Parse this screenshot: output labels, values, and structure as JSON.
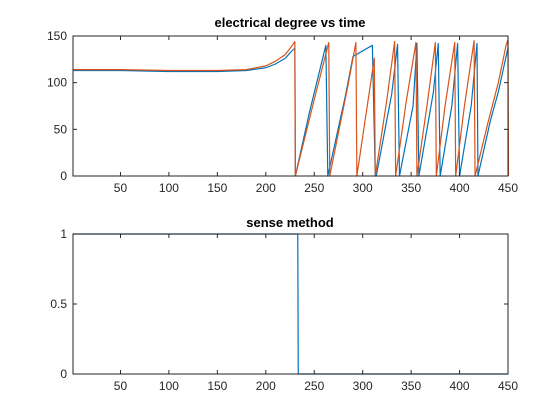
{
  "chart_data": [
    {
      "type": "line",
      "title": "electrical degree vs time",
      "xlabel": "",
      "ylabel": "",
      "xlim": [
        1,
        450
      ],
      "ylim": [
        0,
        150
      ],
      "xticks": [
        50,
        100,
        150,
        200,
        250,
        300,
        350,
        400,
        450
      ],
      "yticks": [
        0,
        50,
        100,
        150
      ],
      "grid": false,
      "series": [
        {
          "color": "#0072BD",
          "x": [
            1,
            50,
            100,
            150,
            180,
            200,
            210,
            220,
            226,
            230,
            230.5,
            245,
            262,
            264,
            282,
            290,
            310,
            313,
            314,
            330,
            336,
            338,
            352,
            356,
            358,
            373,
            378,
            380,
            392,
            398,
            400,
            412,
            418,
            419,
            432,
            440,
            448,
            450
          ],
          "y": [
            113,
            113,
            112,
            112,
            113,
            116,
            120,
            126,
            133,
            137,
            0,
            68,
            140,
            0,
            85,
            128,
            140,
            0,
            0,
            88,
            141,
            0,
            75,
            142,
            0,
            90,
            142,
            0,
            75,
            142,
            0,
            75,
            142,
            0,
            60,
            90,
            128,
            137
          ]
        },
        {
          "color": "#D95319",
          "x": [
            1,
            50,
            100,
            150,
            180,
            200,
            210,
            220,
            226,
            230,
            230.5,
            250,
            265,
            266,
            285,
            293,
            294,
            312,
            313,
            325,
            333,
            334,
            345,
            355,
            356,
            367,
            375,
            376,
            385,
            395,
            396,
            405,
            415,
            416,
            430,
            440,
            448,
            450,
            450.5
          ],
          "y": [
            114,
            114,
            113,
            113,
            114,
            118,
            123,
            130,
            138,
            144,
            0,
            82,
            143,
            0,
            98,
            143,
            0,
            126,
            0,
            82,
            144,
            0,
            80,
            143,
            0,
            80,
            143,
            0,
            75,
            143,
            0,
            75,
            145,
            0,
            60,
            100,
            140,
            146,
            0
          ]
        }
      ]
    },
    {
      "type": "line",
      "title": "sense method",
      "xlabel": "",
      "ylabel": "",
      "xlim": [
        1,
        450
      ],
      "ylim": [
        0,
        1
      ],
      "xticks": [
        50,
        100,
        150,
        200,
        250,
        300,
        350,
        400,
        450
      ],
      "yticks": [
        0,
        0.5,
        1
      ],
      "grid": false,
      "series": [
        {
          "color": "#0072BD",
          "x": [
            1,
            233,
            233.5,
            450
          ],
          "y": [
            1,
            1,
            0,
            0
          ]
        }
      ]
    }
  ]
}
